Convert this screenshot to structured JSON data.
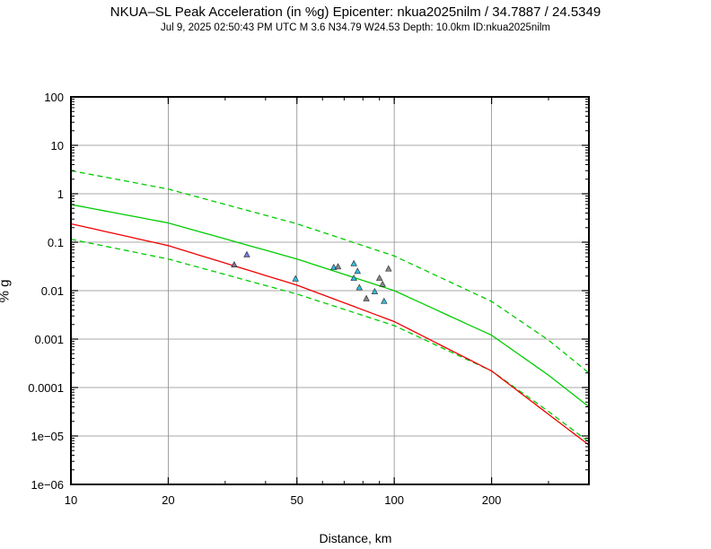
{
  "chart_data": {
    "type": "scatter",
    "title": "NKUA–SL Peak Acceleration (in %g) Epicenter: nkua2025nilm / 34.7887 / 24.5349",
    "subtitle": "Jul  9, 2025 02:50:43 PM UTC   M 3.6   N34.79 W24.53   Depth: 10.0km   ID:nkua2025nilm",
    "xlabel": "Distance, km",
    "ylabel": "% g",
    "xscale": "log",
    "yscale": "log",
    "xlim": [
      10,
      400
    ],
    "ylim": [
      1e-06,
      100
    ],
    "grid": true,
    "x_ticks": [
      {
        "value": 10,
        "label": "10"
      },
      {
        "value": 20,
        "label": "20"
      },
      {
        "value": 50,
        "label": "50"
      },
      {
        "value": 100,
        "label": "100"
      },
      {
        "value": 200,
        "label": "200"
      }
    ],
    "y_ticks": [
      {
        "value": 100,
        "label": "100"
      },
      {
        "value": 10,
        "label": "10"
      },
      {
        "value": 1,
        "label": "1"
      },
      {
        "value": 0.1,
        "label": "0.1"
      },
      {
        "value": 0.01,
        "label": "0.01"
      },
      {
        "value": 0.001,
        "label": "0.001"
      },
      {
        "value": 0.0001,
        "label": "0.0001"
      },
      {
        "value": 1e-05,
        "label": "1e−05"
      },
      {
        "value": 1e-06,
        "label": "1e−06"
      }
    ],
    "curves": [
      {
        "style": "solid",
        "color": "#00cc00",
        "points": [
          [
            10,
            0.6
          ],
          [
            20,
            0.25
          ],
          [
            50,
            0.045
          ],
          [
            100,
            0.01
          ],
          [
            200,
            0.0012
          ],
          [
            300,
            0.00018
          ],
          [
            400,
            4e-05
          ]
        ]
      },
      {
        "style": "dashed",
        "color": "#00cc00",
        "points": [
          [
            10,
            3.0
          ],
          [
            20,
            1.25
          ],
          [
            50,
            0.24
          ],
          [
            100,
            0.052
          ],
          [
            200,
            0.006
          ],
          [
            300,
            0.00095
          ],
          [
            400,
            0.0002
          ]
        ]
      },
      {
        "style": "dashed",
        "color": "#00cc00",
        "points": [
          [
            10,
            0.115
          ],
          [
            20,
            0.045
          ],
          [
            50,
            0.0085
          ],
          [
            100,
            0.0019
          ],
          [
            200,
            0.00022
          ],
          [
            300,
            3.2e-05
          ],
          [
            400,
            7.5e-06
          ]
        ]
      },
      {
        "style": "solid",
        "color": "#ee0000",
        "points": [
          [
            10,
            0.24
          ],
          [
            20,
            0.085
          ],
          [
            50,
            0.013
          ],
          [
            100,
            0.0023
          ],
          [
            200,
            0.00022
          ],
          [
            300,
            2.8e-05
          ],
          [
            400,
            6.5e-06
          ]
        ]
      }
    ],
    "stations": [
      {
        "x": 32,
        "y": 0.034,
        "color": "#8a6f9a"
      },
      {
        "x": 35,
        "y": 0.055,
        "color": "#7777dd"
      },
      {
        "x": 49.5,
        "y": 0.0175,
        "color": "#33bbdd"
      },
      {
        "x": 65,
        "y": 0.03,
        "color": "#33bbdd"
      },
      {
        "x": 67,
        "y": 0.031,
        "color": "#888888"
      },
      {
        "x": 75,
        "y": 0.036,
        "color": "#33bbdd"
      },
      {
        "x": 77,
        "y": 0.025,
        "color": "#33bbdd"
      },
      {
        "x": 75,
        "y": 0.018,
        "color": "#33bbdd"
      },
      {
        "x": 78,
        "y": 0.0115,
        "color": "#33bbdd"
      },
      {
        "x": 82,
        "y": 0.0068,
        "color": "#888888"
      },
      {
        "x": 87,
        "y": 0.0095,
        "color": "#33bbdd"
      },
      {
        "x": 90,
        "y": 0.018,
        "color": "#888888"
      },
      {
        "x": 92,
        "y": 0.0135,
        "color": "#888888"
      },
      {
        "x": 93,
        "y": 0.006,
        "color": "#33bbdd"
      },
      {
        "x": 96,
        "y": 0.028,
        "color": "#888888"
      }
    ]
  }
}
